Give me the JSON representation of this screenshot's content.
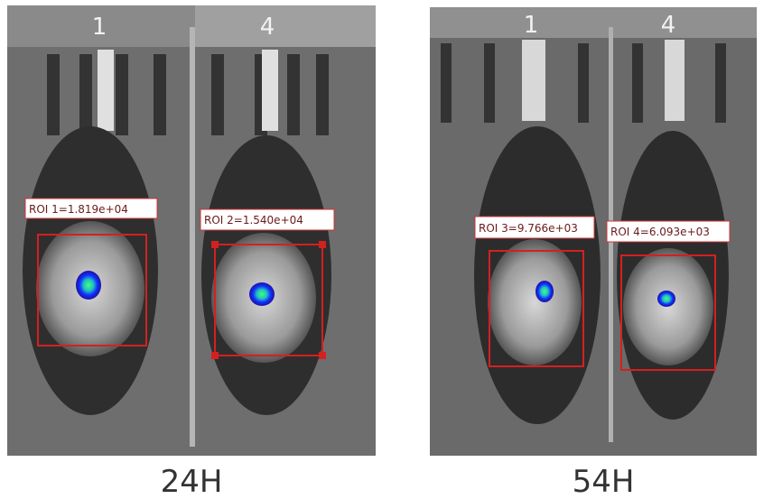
{
  "panels": [
    {
      "caption": "24H",
      "lanes": [
        "1",
        "4"
      ],
      "rois": [
        "ROI 1=1.819e+04",
        "ROI 2=1.540e+04"
      ]
    },
    {
      "caption": "54H",
      "lanes": [
        "1",
        "4"
      ],
      "rois": [
        "ROI 3=9.766e+03",
        "ROI 4=6.093e+03"
      ]
    }
  ]
}
